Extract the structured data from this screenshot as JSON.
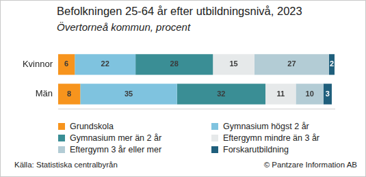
{
  "chart_data": {
    "type": "bar",
    "orientation": "horizontal",
    "stacked": true,
    "title": "Befolkningen 25-64 år efter utbildningsnivå, 2023",
    "subtitle": "Övertorneå kommun, procent",
    "annotations": [
      "Källa: Statistiska centralbyrån",
      "© Pantzare Information AB"
    ],
    "categories": [
      "Kvinnor",
      "Män"
    ],
    "series": [
      {
        "name": "Grundskola",
        "color": "#f7941d",
        "values": [
          6,
          8
        ]
      },
      {
        "name": "Gymnasium högst 2 år",
        "color": "#7fc3df",
        "values": [
          22,
          35
        ]
      },
      {
        "name": "Gymnasium mer än 2 år",
        "color": "#3a8e95",
        "values": [
          28,
          32
        ]
      },
      {
        "name": "Eftergymn mindre än 3 år",
        "color": "#e6e9ea",
        "values": [
          15,
          11
        ]
      },
      {
        "name": "Eftergymn 3 år eller mer",
        "color": "#b3ccd5",
        "values": [
          27,
          10
        ]
      },
      {
        "name": "Forskarutbildning",
        "color": "#1f5f7c",
        "values": [
          2,
          3
        ]
      }
    ],
    "xlim": [
      0,
      100
    ],
    "tick_labels": "y",
    "grid": false,
    "legend": "bottom",
    "data_labels": true
  }
}
